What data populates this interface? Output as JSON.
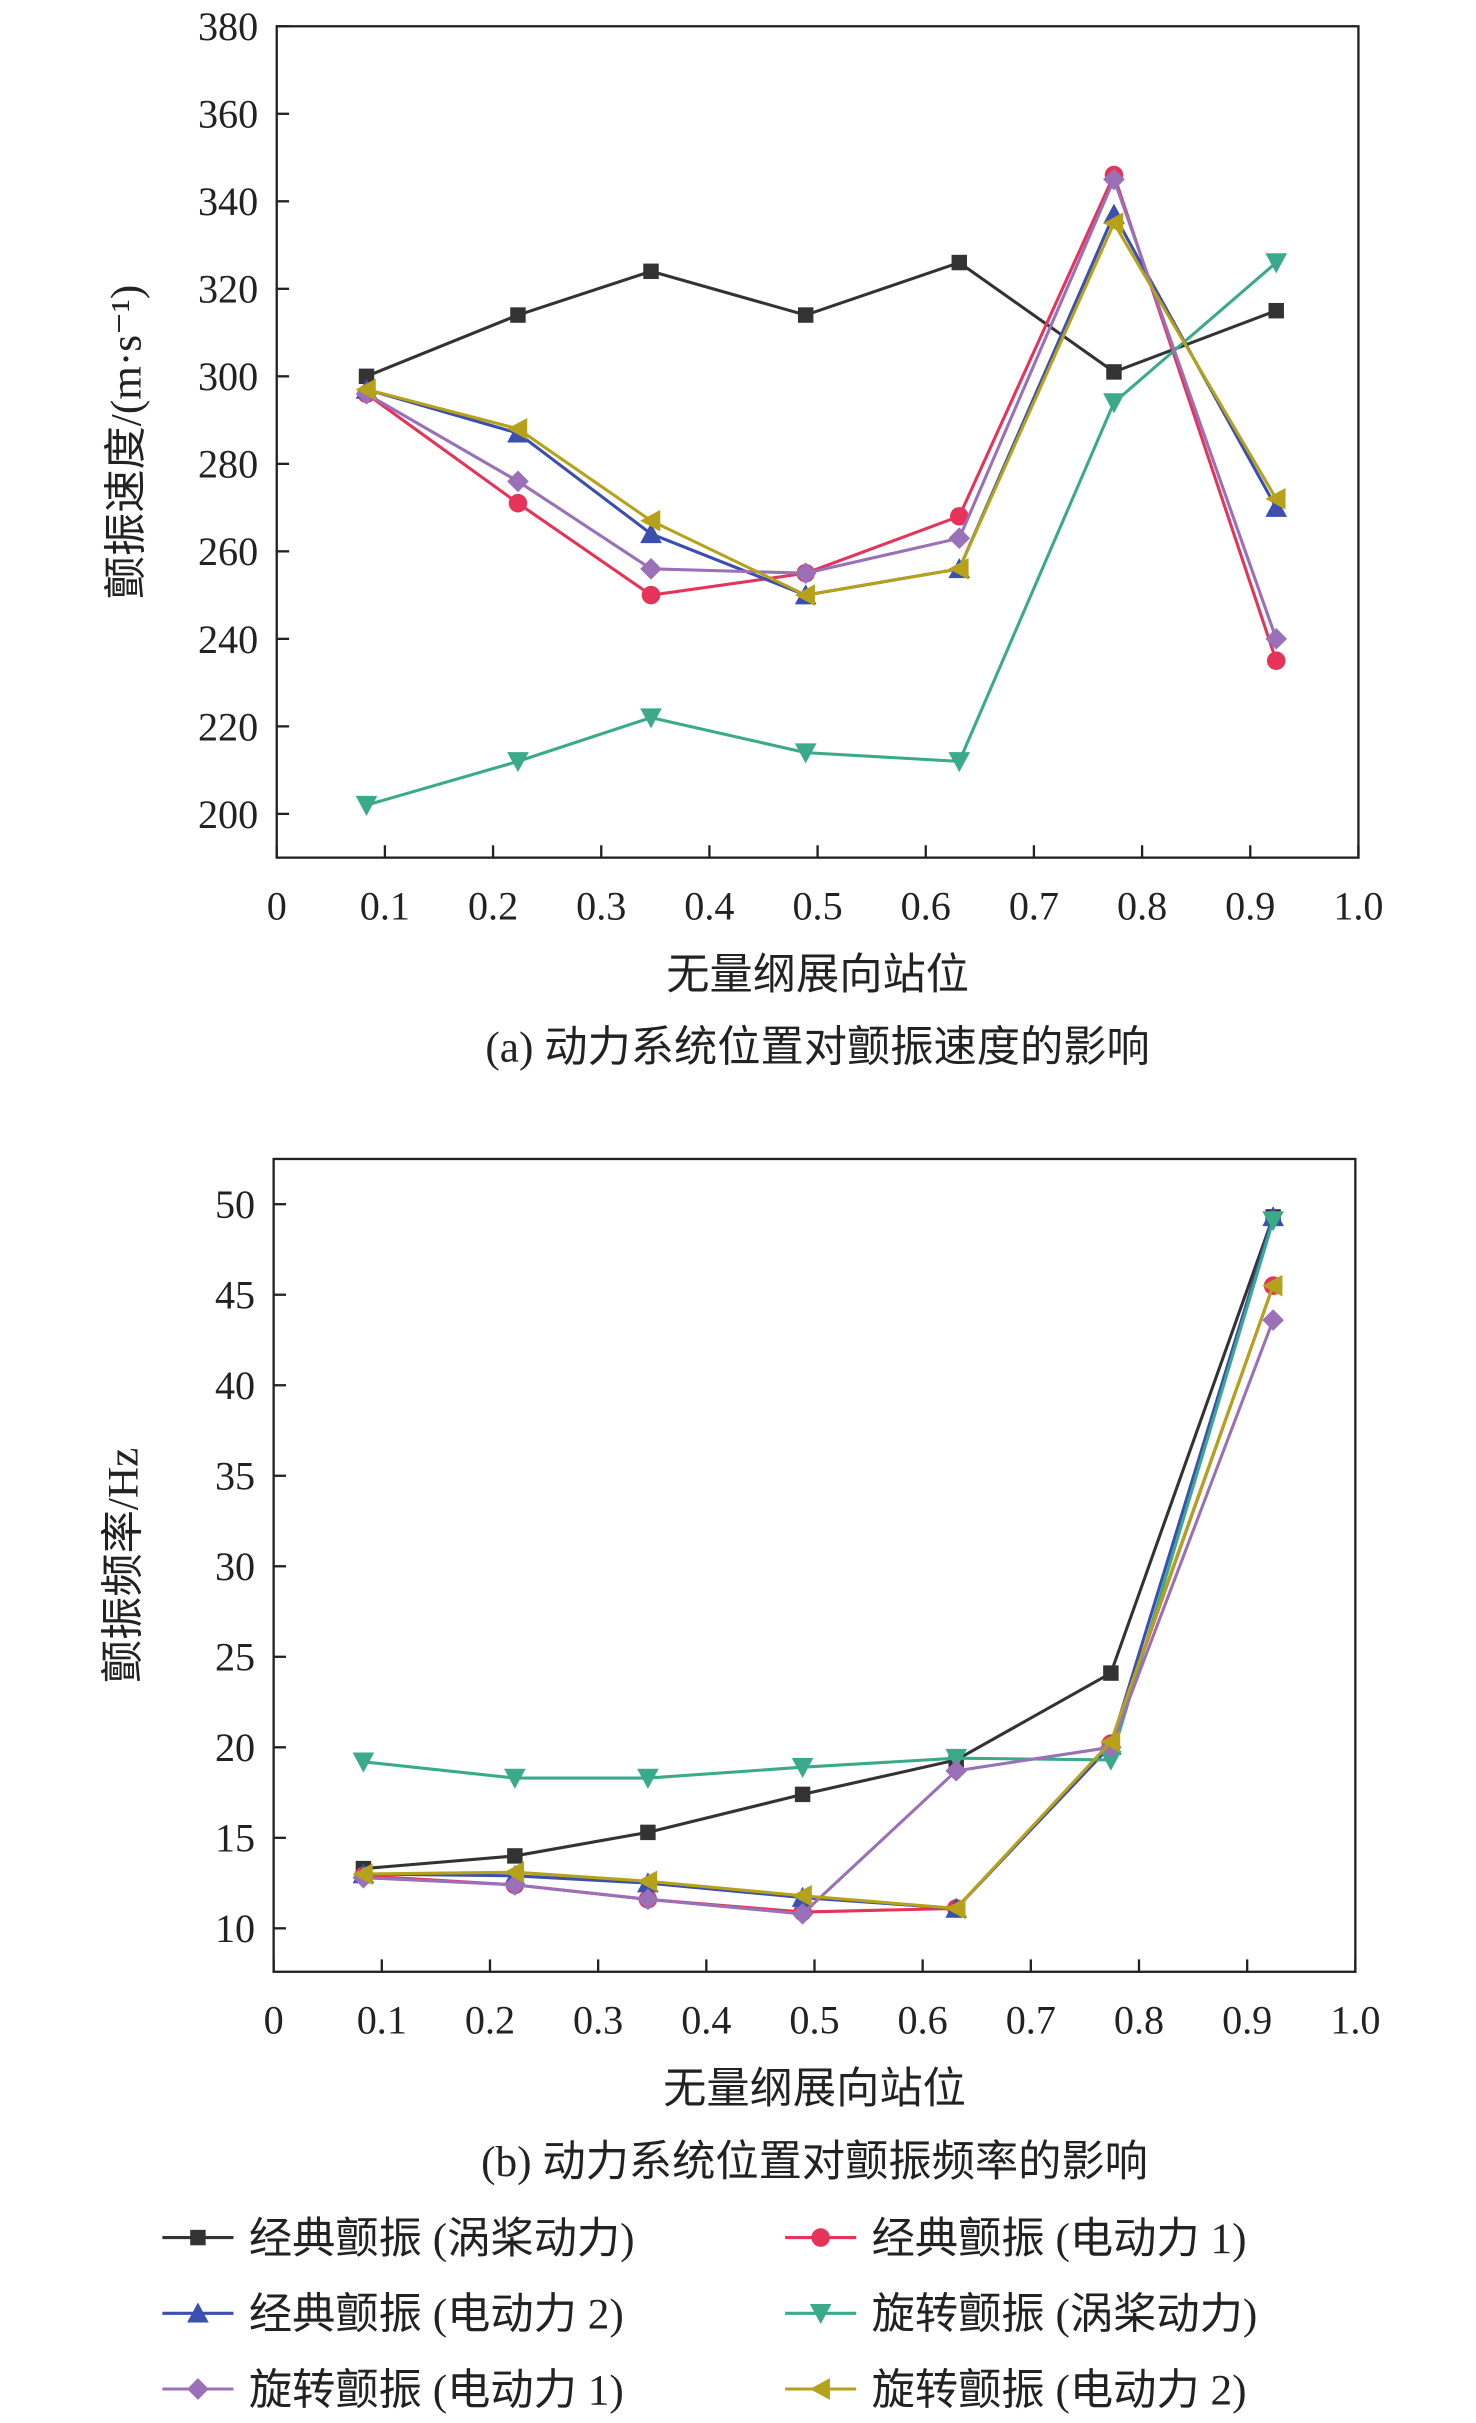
{
  "chart_data": [
    {
      "type": "line",
      "caption": "(a) 动力系统位置对颤振速度的影响",
      "xlabel": "无量纲展向站位",
      "ylabel": "颤振速度/(m·s⁻¹)",
      "x": [
        0.083,
        0.223,
        0.346,
        0.489,
        0.631,
        0.774,
        0.924
      ],
      "xlim": [
        0,
        1
      ],
      "xticks": [
        0,
        0.1,
        0.2,
        0.3,
        0.4,
        0.5,
        0.6,
        0.7,
        0.8,
        0.9,
        {
          "value": 1,
          "label": "1.0"
        }
      ],
      "ylim": [
        190,
        380
      ],
      "yticks": [
        200,
        220,
        240,
        260,
        280,
        300,
        320,
        340,
        360,
        380
      ],
      "series": [
        {
          "name": "经典颤振 (涡桨动力)",
          "color": "#333333",
          "marker": "square",
          "values": [
            300,
            314,
            324,
            314,
            326,
            301,
            315
          ]
        },
        {
          "name": "经典颤振 (电动力 1)",
          "color": "#e6335a",
          "marker": "circle",
          "values": [
            296,
            271,
            250,
            255,
            268,
            346,
            235
          ]
        },
        {
          "name": "经典颤振 (电动力 2)",
          "color": "#3a4fb0",
          "marker": "up",
          "values": [
            297,
            287,
            264,
            250,
            256,
            337,
            270
          ]
        },
        {
          "name": "旋转颤振 (涡桨动力)",
          "color": "#3aaa8a",
          "marker": "down",
          "values": [
            202,
            212,
            222,
            214,
            212,
            294,
            326
          ]
        },
        {
          "name": "旋转颤振 (电动力 1)",
          "color": "#9a70b8",
          "marker": "diamond",
          "values": [
            296,
            276,
            256,
            255,
            263,
            345,
            240
          ]
        },
        {
          "name": "旋转颤振 (电动力 2)",
          "color": "#b5a21a",
          "marker": "left",
          "values": [
            297,
            288,
            267,
            250,
            256,
            335,
            272
          ]
        }
      ]
    },
    {
      "type": "line",
      "caption": "(b) 动力系统位置对颤振频率的影响",
      "xlabel": "无量纲展向站位",
      "ylabel": "颤振频率/Hz",
      "x": [
        0.083,
        0.223,
        0.346,
        0.489,
        0.631,
        0.774,
        0.924
      ],
      "xlim": [
        0,
        1
      ],
      "xticks": [
        0,
        0.1,
        0.2,
        0.3,
        0.4,
        0.5,
        0.6,
        0.7,
        0.8,
        0.9,
        {
          "value": 1,
          "label": "1.0"
        }
      ],
      "ylim": [
        7.6,
        52.5
      ],
      "yticks": [
        10,
        15,
        20,
        25,
        30,
        35,
        40,
        45,
        50
      ],
      "series": [
        {
          "name": "经典颤振 (涡桨动力)",
          "color": "#333333",
          "marker": "square",
          "values": [
            13.3,
            14.0,
            15.3,
            17.4,
            19.3,
            24.1,
            49.3
          ]
        },
        {
          "name": "经典颤振 (电动力 1)",
          "color": "#e6335a",
          "marker": "circle",
          "values": [
            12.9,
            12.4,
            11.6,
            10.9,
            11.1,
            20.2,
            45.5
          ]
        },
        {
          "name": "经典颤振 (电动力 2)",
          "color": "#3a4fb0",
          "marker": "up",
          "values": [
            13.0,
            12.9,
            12.5,
            11.7,
            11.1,
            20.1,
            49.3
          ]
        },
        {
          "name": "旋转颤振 (涡桨动力)",
          "color": "#3aaa8a",
          "marker": "down",
          "values": [
            19.2,
            18.3,
            18.3,
            18.9,
            19.4,
            19.3,
            49.1
          ]
        },
        {
          "name": "旋转颤振 (电动力 1)",
          "color": "#9a70b8",
          "marker": "diamond",
          "values": [
            12.8,
            12.4,
            11.6,
            10.8,
            18.7,
            20.0,
            43.6
          ]
        },
        {
          "name": "旋转颤振 (电动力 2)",
          "color": "#b5a21a",
          "marker": "left",
          "values": [
            13.0,
            13.1,
            12.6,
            11.8,
            11.1,
            20.3,
            45.5
          ]
        }
      ]
    }
  ]
}
